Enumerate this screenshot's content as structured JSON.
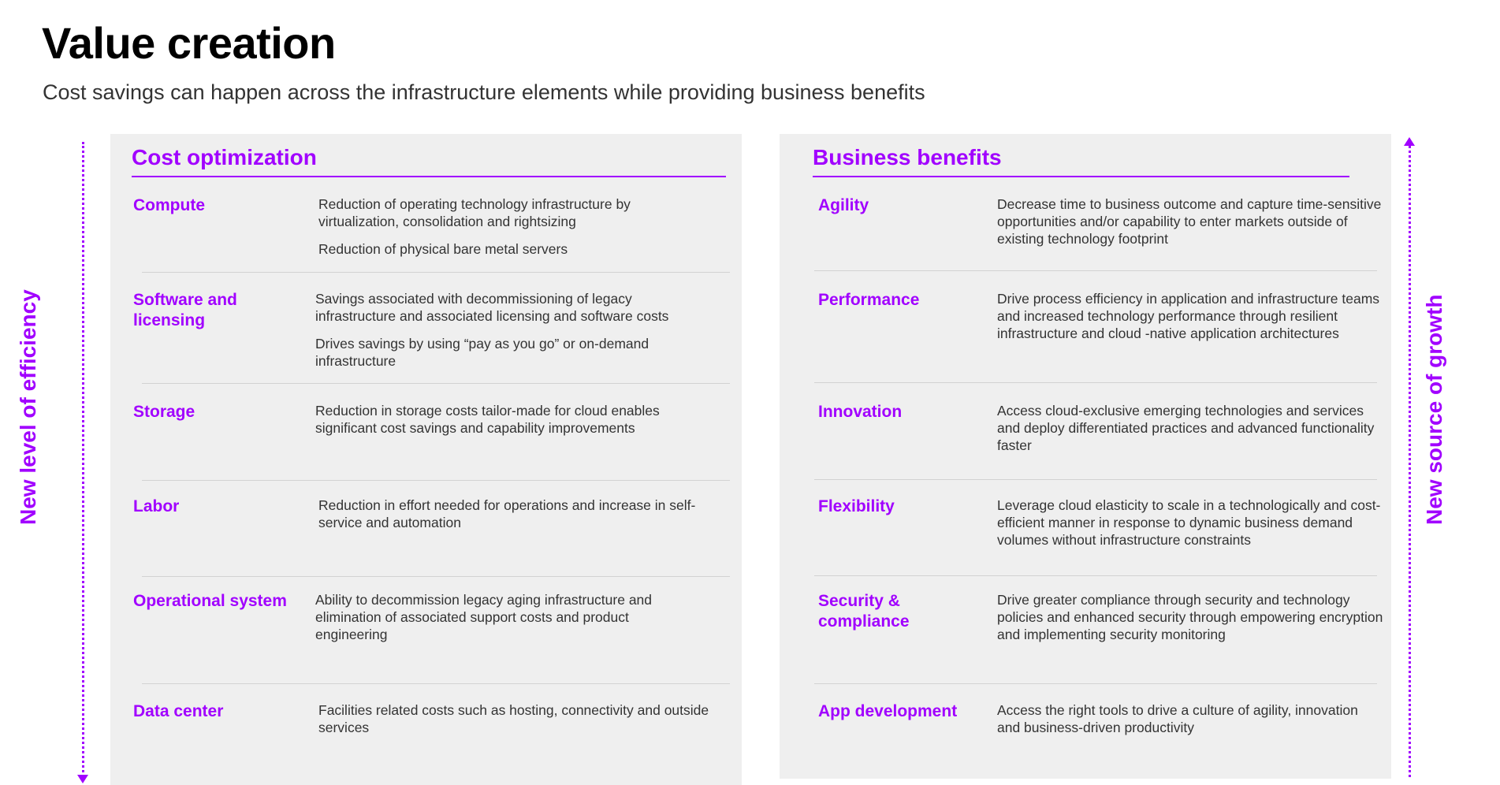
{
  "header": {
    "title": "Value creation",
    "subtitle": "Cost savings can happen across the infrastructure elements while providing business benefits"
  },
  "axes": {
    "left_label": "New level of efficiency",
    "right_label": "New source of growth",
    "left_direction": "down",
    "right_direction": "up",
    "accent_color": "#a100ff"
  },
  "cost": {
    "title": "Cost optimization",
    "items": [
      {
        "label": "Compute",
        "desc1": "Reduction of operating technology infrastructure by virtualization, consolidation and rightsizing",
        "desc2": "Reduction of physical bare metal servers"
      },
      {
        "label": "Software and licensing",
        "desc1": "Savings associated with decommissioning of legacy infrastructure and associated licensing and software costs",
        "desc2": "Drives savings by using “pay as you go” or on-demand infrastructure"
      },
      {
        "label": "Storage",
        "desc1": "Reduction in storage costs tailor-made for cloud enables significant cost savings and capability improvements"
      },
      {
        "label": "Labor",
        "desc1": "Reduction in effort needed for operations and increase in self-service and automation"
      },
      {
        "label": "Operational system",
        "desc1": "Ability to decommission legacy aging infrastructure and elimination of associated support costs and product engineering"
      },
      {
        "label": "Data center",
        "desc1": "Facilities related costs such as hosting, connectivity and outside services"
      }
    ]
  },
  "benefits": {
    "title": "Business benefits",
    "items": [
      {
        "label": "Agility",
        "desc1": "Decrease time to business outcome and capture time-sensitive opportunities and/or capability to enter markets outside of existing technology footprint"
      },
      {
        "label": "Performance",
        "desc1": "Drive process efficiency in application and infrastructure teams and increased technology performance through resilient infrastructure and cloud -native application architectures"
      },
      {
        "label": "Innovation",
        "desc1": "Access cloud-exclusive emerging technologies and services and deploy differentiated practices and advanced functionality faster"
      },
      {
        "label": "Flexibility",
        "desc1": "Leverage cloud elasticity to scale in a technologically and cost-efficient manner in response to dynamic business demand volumes without infrastructure constraints"
      },
      {
        "label": "Security & compliance",
        "desc1": "Drive greater compliance through security and technology policies and enhanced security through empowering encryption and implementing security monitoring"
      },
      {
        "label": "App development",
        "desc1": "Access the right tools to drive a culture of agility, innovation and business-driven productivity"
      }
    ]
  }
}
